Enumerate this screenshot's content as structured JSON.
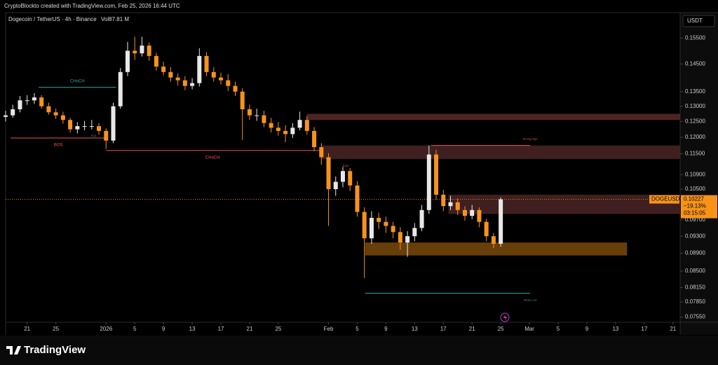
{
  "header": {
    "credit": "CryptoBlockto created with TradingView.com, Feb 25, 2026 16:44 UTC",
    "symbol": "Dogecoin / TetherUS · 4h · Binance",
    "volume": "Vol87.81 M",
    "currency": "USDT",
    "brand": "TradingView"
  },
  "chart_data": {
    "type": "candlestick",
    "log_scale": true,
    "up_color": "#e8e8e8",
    "down_color": "#f7931a",
    "x": [
      -14,
      -13,
      -12,
      -11,
      -10,
      -9,
      -8,
      -7,
      -6,
      -5,
      -4,
      -3,
      -2,
      -1,
      0,
      1,
      2,
      3,
      4,
      5,
      6,
      7,
      8,
      9,
      10,
      11,
      12,
      13,
      14,
      15,
      16,
      17,
      18,
      19,
      20,
      21,
      22,
      23,
      24,
      25,
      26,
      27,
      28,
      29,
      30,
      31,
      32,
      33,
      34,
      35,
      36,
      37,
      38,
      39,
      40,
      41,
      42,
      43,
      44,
      45,
      46,
      47,
      48,
      49,
      50,
      51,
      52,
      53,
      54,
      55
    ],
    "open": [
      0.1265,
      0.127,
      0.129,
      0.132,
      0.132,
      0.133,
      0.13,
      0.128,
      0.127,
      0.1255,
      0.1225,
      0.1235,
      0.1235,
      0.1235,
      0.122,
      0.119,
      0.13,
      0.142,
      0.15,
      0.149,
      0.152,
      0.148,
      0.144,
      0.142,
      0.14,
      0.139,
      0.137,
      0.138,
      0.148,
      0.142,
      0.14,
      0.139,
      0.137,
      0.135,
      0.129,
      0.127,
      0.127,
      0.1245,
      0.123,
      0.122,
      0.121,
      0.123,
      0.1255,
      0.122,
      0.117,
      0.114,
      0.105,
      0.107,
      0.11,
      0.106,
      0.099,
      0.0925,
      0.0975,
      0.0965,
      0.0955,
      0.094,
      0.0915,
      0.093,
      0.095,
      0.0995,
      0.1148,
      0.1035,
      0.1005,
      0.1015,
      0.0995,
      0.098,
      0.0995,
      0.0965,
      0.093,
      0.0912
    ],
    "high": [
      0.1285,
      0.1305,
      0.1335,
      0.1338,
      0.1345,
      0.1338,
      0.1312,
      0.1292,
      0.1282,
      0.1262,
      0.1248,
      0.1252,
      0.1255,
      0.1245,
      0.1228,
      0.1312,
      0.1435,
      0.1535,
      0.1555,
      0.1555,
      0.1532,
      0.1492,
      0.1458,
      0.1438,
      0.1415,
      0.1405,
      0.1398,
      0.151,
      0.1495,
      0.1438,
      0.1418,
      0.1412,
      0.1385,
      0.1362,
      0.1305,
      0.1292,
      0.1285,
      0.1262,
      0.1248,
      0.1238,
      0.1245,
      0.1282,
      0.1268,
      0.1232,
      0.1182,
      0.1152,
      0.1085,
      0.1112,
      0.1108,
      0.1072,
      0.1002,
      0.0992,
      0.0988,
      0.0978,
      0.0965,
      0.0952,
      0.0942,
      0.0962,
      0.1008,
      0.1175,
      0.1162,
      0.1048,
      0.1032,
      0.1025,
      0.1005,
      0.1008,
      0.1002,
      0.0972,
      0.0938,
      0.1028
    ],
    "low": [
      0.125,
      0.1262,
      0.128,
      0.1305,
      0.1308,
      0.1292,
      0.1272,
      0.1258,
      0.1243,
      0.1215,
      0.1212,
      0.1222,
      0.1225,
      0.1208,
      0.1165,
      0.1182,
      0.1292,
      0.1405,
      0.1465,
      0.1478,
      0.1462,
      0.1425,
      0.1408,
      0.1385,
      0.1372,
      0.1355,
      0.1358,
      0.1368,
      0.1405,
      0.1385,
      0.1375,
      0.1352,
      0.1335,
      0.1192,
      0.1255,
      0.1252,
      0.1232,
      0.1215,
      0.1205,
      0.1185,
      0.1198,
      0.1222,
      0.1208,
      0.1158,
      0.1118,
      0.0955,
      0.1032,
      0.1055,
      0.1045,
      0.0978,
      0.0835,
      0.0912,
      0.0948,
      0.0938,
      0.0925,
      0.0898,
      0.0882,
      0.0918,
      0.0942,
      0.0985,
      0.1022,
      0.0992,
      0.0995,
      0.0982,
      0.0968,
      0.0972,
      0.0952,
      0.0918,
      0.0902,
      0.0905
    ],
    "close": [
      0.127,
      0.129,
      0.132,
      0.132,
      0.133,
      0.13,
      0.128,
      0.127,
      0.1255,
      0.1225,
      0.1235,
      0.1235,
      0.1235,
      0.122,
      0.119,
      0.13,
      0.142,
      0.15,
      0.149,
      0.152,
      0.148,
      0.144,
      0.142,
      0.14,
      0.139,
      0.137,
      0.138,
      0.148,
      0.142,
      0.14,
      0.139,
      0.137,
      0.135,
      0.129,
      0.127,
      0.127,
      0.1245,
      0.123,
      0.122,
      0.121,
      0.123,
      0.1255,
      0.122,
      0.117,
      0.114,
      0.105,
      0.107,
      0.11,
      0.106,
      0.099,
      0.0925,
      0.0975,
      0.0965,
      0.0955,
      0.094,
      0.0915,
      0.093,
      0.095,
      0.0995,
      0.1148,
      0.1035,
      0.1005,
      0.1015,
      0.0995,
      0.098,
      0.0995,
      0.0965,
      0.093,
      0.0912,
      0.10227
    ],
    "xlim": [
      -14,
      80
    ],
    "ylim": [
      0.0745,
      0.1655
    ],
    "xticks": [
      {
        "value": -11,
        "label": "21"
      },
      {
        "value": -7,
        "label": "25"
      },
      {
        "value": 0,
        "label": "2026"
      },
      {
        "value": 4,
        "label": "5"
      },
      {
        "value": 8,
        "label": "9"
      },
      {
        "value": 12,
        "label": "13"
      },
      {
        "value": 16,
        "label": "17"
      },
      {
        "value": 20,
        "label": "21"
      },
      {
        "value": 24,
        "label": "25"
      },
      {
        "value": 31,
        "label": "Feb"
      },
      {
        "value": 35,
        "label": "5"
      },
      {
        "value": 39,
        "label": "9"
      },
      {
        "value": 43,
        "label": "13"
      },
      {
        "value": 47,
        "label": "17"
      },
      {
        "value": 51,
        "label": "21"
      },
      {
        "value": 55,
        "label": "25"
      },
      {
        "value": 59,
        "label": "Mar"
      },
      {
        "value": 63,
        "label": "5"
      },
      {
        "value": 67,
        "label": "9"
      },
      {
        "value": 71,
        "label": "13"
      },
      {
        "value": 75,
        "label": "17"
      },
      {
        "value": 79,
        "label": "21"
      }
    ],
    "yticks": [
      {
        "value": 0.155,
        "label": "0.15500"
      },
      {
        "value": 0.145,
        "label": "0.14500"
      },
      {
        "value": 0.135,
        "label": "0.13500"
      },
      {
        "value": 0.13,
        "label": "0.13000"
      },
      {
        "value": 0.125,
        "label": "0.12500"
      },
      {
        "value": 0.12,
        "label": "0.12000"
      },
      {
        "value": 0.115,
        "label": "0.11500"
      },
      {
        "value": 0.109,
        "label": "0.10900"
      },
      {
        "value": 0.105,
        "label": "0.10500"
      },
      {
        "value": 0.097,
        "label": "0.09700"
      },
      {
        "value": 0.093,
        "label": "0.09300"
      },
      {
        "value": 0.089,
        "label": "0.08900"
      },
      {
        "value": 0.085,
        "label": "0.08500"
      },
      {
        "value": 0.0815,
        "label": "0.08150"
      },
      {
        "value": 0.0785,
        "label": "0.07850"
      },
      {
        "value": 0.0755,
        "label": "0.07550"
      }
    ],
    "zones": [
      {
        "top": 0.1275,
        "bottom": 0.1255,
        "x": [
          28,
          80
        ],
        "color": "#5a2a2c"
      },
      {
        "top": 0.1175,
        "bottom": 0.1135,
        "x": [
          30,
          80
        ],
        "color": "#4a2426"
      },
      {
        "top": 0.1035,
        "bottom": 0.0985,
        "x": [
          47.7,
          80
        ],
        "color": "#4a2426"
      },
      {
        "top": 0.0915,
        "bottom": 0.0885,
        "x": [
          36.1,
          72.6
        ],
        "color": "#7a4a0c"
      }
    ],
    "levels": [
      {
        "label": "CHoCH",
        "price": 0.1365,
        "x": [
          -9.4,
          1.4
        ],
        "color": "#26a69a"
      },
      {
        "label": "BOS",
        "price": 0.1198,
        "x": [
          -13.3,
          0
        ],
        "color": "#ef5350"
      },
      {
        "label": "CHoCH",
        "price": 0.116,
        "x": [
          0,
          29.7
        ],
        "color": "#ef5350"
      },
      {
        "label": "Strong High",
        "price": 0.1175,
        "x": [
          45.3,
          59.1
        ],
        "color": "#ef5350"
      },
      {
        "label": "Weak Low",
        "price": 0.0803,
        "x": [
          36.1,
          59.1
        ],
        "color": "#26a69a"
      }
    ],
    "markers": [
      {
        "label": "EQL",
        "x": -1.7,
        "price": 0.1205,
        "color": "#26a69a"
      },
      {
        "label": "EQH",
        "x": 33.4,
        "price": 0.1115,
        "color": "#ef5350"
      }
    ],
    "price_tag": {
      "symbol": "DOGEUSDT",
      "change": "−19.13%",
      "countdown": "03:15:05"
    }
  }
}
